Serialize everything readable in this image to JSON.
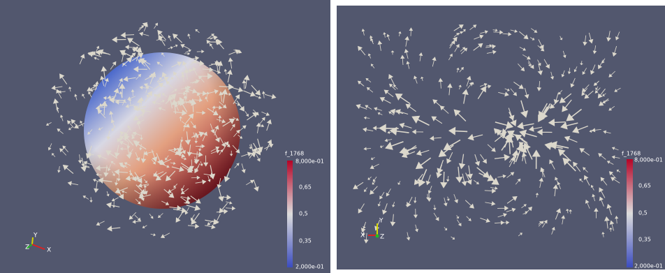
{
  "panels": [
    {
      "legend": {
        "title": "f_1768",
        "ticks": [
          "8,000e-01",
          "0,65",
          "0,5",
          "0,35",
          "2,000e-01"
        ]
      },
      "axes": {
        "x": "X",
        "y": "Y",
        "z": "Z"
      }
    },
    {
      "legend": {
        "title": "f_1768",
        "ticks": [
          "8,000e-01",
          "0,65",
          "0,5",
          "0,35",
          "2,000e-01"
        ]
      },
      "axes": {
        "x": "X",
        "y": "Y",
        "z": "Z"
      }
    }
  ]
}
